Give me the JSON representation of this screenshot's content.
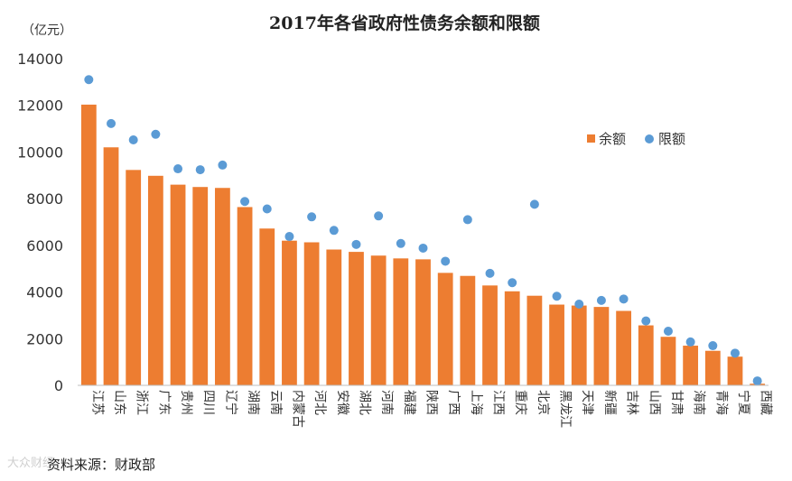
{
  "chart_data": {
    "type": "bar",
    "title": "2017年各省政府性债务余额和限额",
    "unit_label": "（亿元）",
    "ylim": [
      0,
      14000
    ],
    "yticks": [
      0,
      2000,
      4000,
      6000,
      8000,
      10000,
      12000,
      14000
    ],
    "categories": [
      "江苏",
      "山东",
      "浙江",
      "广东",
      "贵州",
      "四川",
      "辽宁",
      "湖南",
      "云南",
      "内蒙古",
      "河北",
      "安徽",
      "湖北",
      "河南",
      "福建",
      "陕西",
      "广西",
      "上海",
      "江西",
      "重庆",
      "北京",
      "黑龙江",
      "天津",
      "新疆",
      "吉林",
      "山西",
      "甘肃",
      "海南",
      "青海",
      "宁夏",
      "西藏"
    ],
    "series": [
      {
        "name": "余额",
        "type": "bar",
        "color": "#ED7D31",
        "values": [
          12030,
          10200,
          9230,
          8980,
          8600,
          8500,
          8460,
          7640,
          6720,
          6200,
          6130,
          5820,
          5720,
          5560,
          5440,
          5400,
          4820,
          4690,
          4280,
          4030,
          3840,
          3460,
          3420,
          3360,
          3190,
          2570,
          2080,
          1700,
          1480,
          1230,
          70
        ]
      },
      {
        "name": "限额",
        "type": "scatter",
        "color": "#5B9BD5",
        "values": [
          13100,
          11220,
          10520,
          10760,
          9280,
          9240,
          9440,
          7880,
          7560,
          6380,
          7220,
          6640,
          6040,
          7260,
          6080,
          5880,
          5320,
          7100,
          4800,
          4400,
          7760,
          3820,
          3480,
          3640,
          3700,
          2760,
          2320,
          1860,
          1700,
          1380,
          190
        ]
      }
    ],
    "legend": {
      "position": "right",
      "items": [
        "余额",
        "限额"
      ]
    }
  },
  "source": "资料来源：财政部",
  "watermark": "大众财经"
}
